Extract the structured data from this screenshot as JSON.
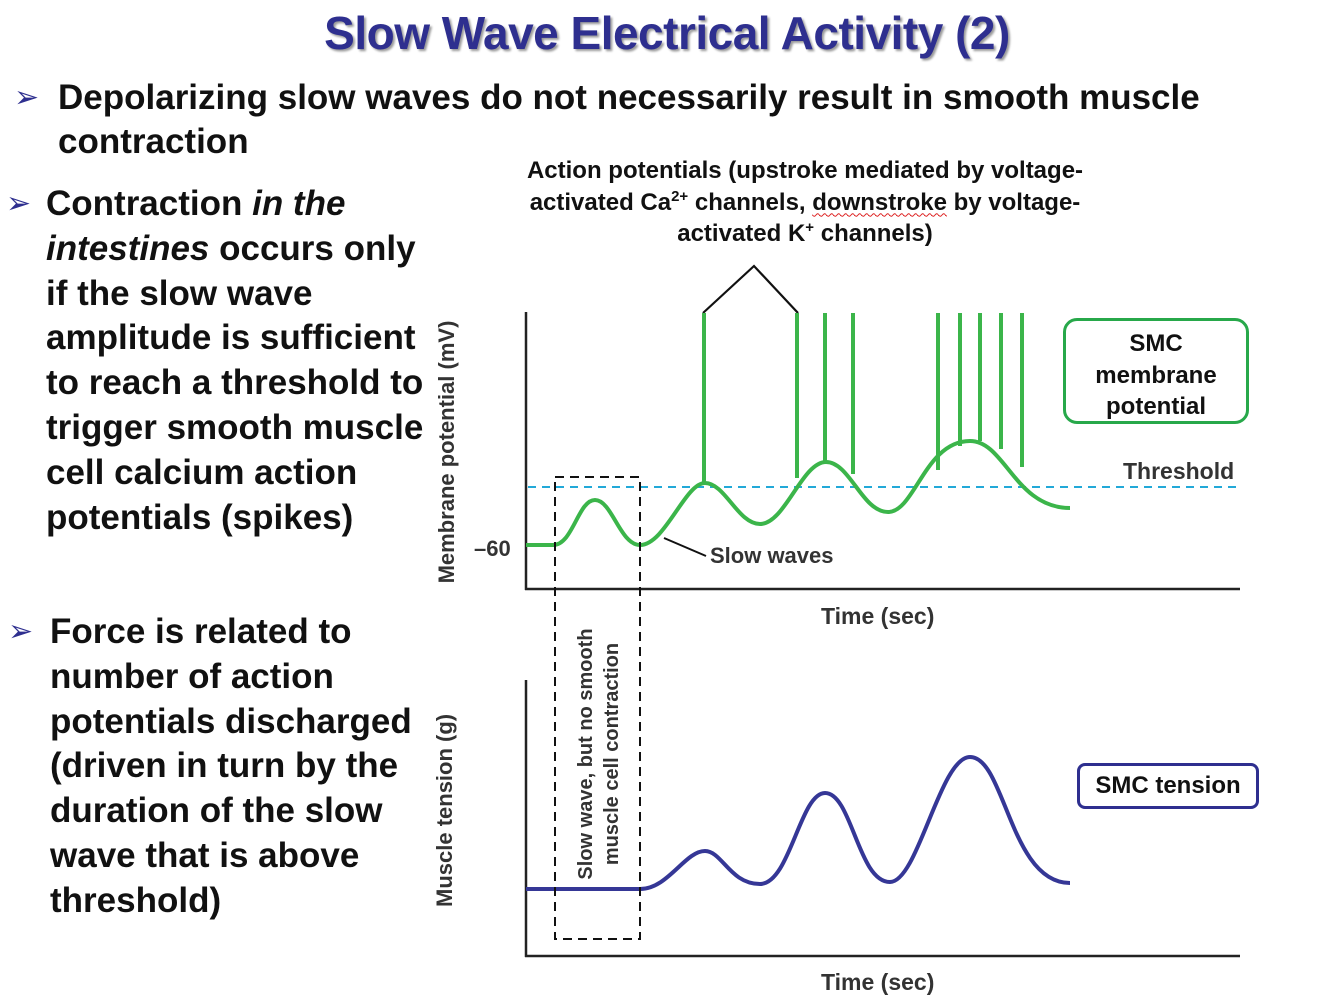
{
  "title": "Slow Wave Electrical Activity (2)",
  "bullets": [
    {
      "text": "Depolarizing slow waves do not necessarily result in smooth muscle contraction"
    },
    {
      "pre": "Contraction ",
      "italic": "in the intestines",
      "post": " occurs only if the slow wave amplitude is sufficient to reach a threshold to trigger smooth muscle cell calcium action potentials (spikes)"
    },
    {
      "text": "Force is related to number of action potentials discharged (driven in turn by the duration of the slow wave that is above threshold)"
    }
  ],
  "bullet_glyph": "➢",
  "diagram": {
    "ap_caption": {
      "line1": "Action potentials (upstroke mediated by voltage-",
      "line2_a": "activated Ca",
      "line2_sup": "2+",
      "line2_b": " channels, ",
      "line2_c": "downstroke",
      "line2_d": " by voltage-",
      "line3_a": "activated K",
      "line3_sup": "+",
      "line3_b": " channels)"
    },
    "top_panel": {
      "y_axis_label": "Membrane potential (mV)",
      "y_tick": "–60",
      "x_axis_label": "Time (sec)",
      "threshold_label": "Threshold",
      "slow_waves_label": "Slow waves",
      "legend": [
        "SMC",
        "membrane",
        "potential"
      ],
      "trace_color": "#3bb54a",
      "threshold_color": "#22a9d8",
      "spike_bursts": [
        1,
        3,
        5
      ]
    },
    "bottom_panel": {
      "y_axis_label": "Muscle tension (g)",
      "x_axis_label": "Time (sec)",
      "legend": "SMC tension",
      "trace_color": "#353796"
    },
    "dashed_box_label": [
      "Slow wave, but no smooth",
      "muscle cell contraction"
    ]
  }
}
